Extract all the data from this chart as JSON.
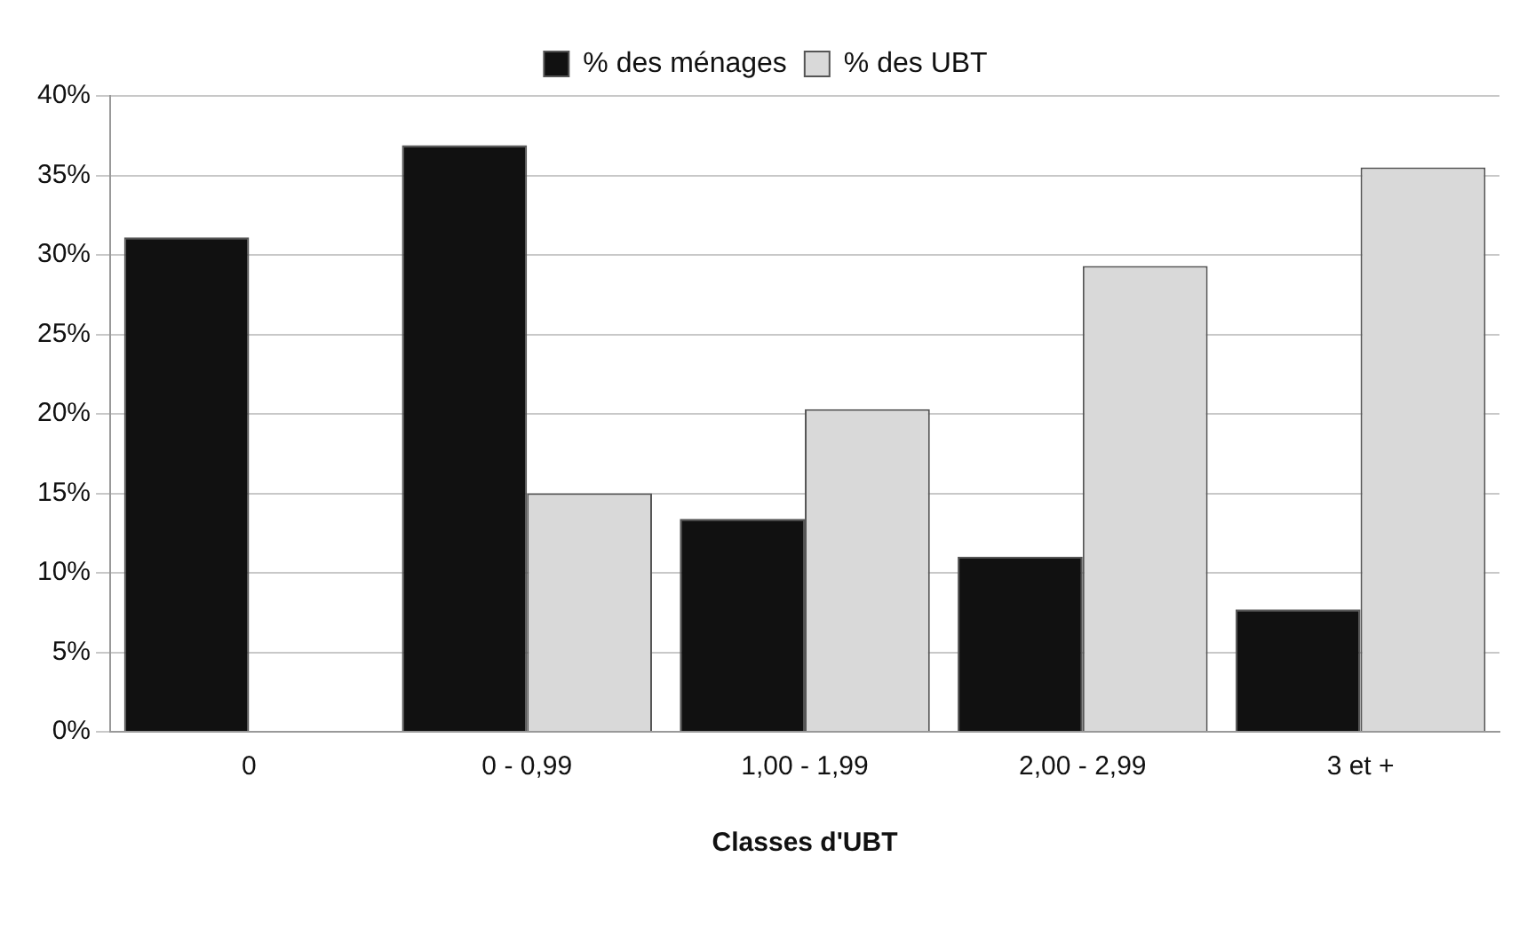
{
  "chart_data": {
    "type": "bar",
    "xlabel": "Classes d'UBT",
    "categories": [
      "0",
      "0 - 0,99",
      "1,00 - 1,99",
      "2,00 - 2,99",
      "3 et +"
    ],
    "series": [
      {
        "name": "% des ménages",
        "color": "#111111",
        "values": [
          31.1,
          36.9,
          13.4,
          11.0,
          7.7
        ]
      },
      {
        "name": "% des UBT",
        "color": "#d9d9d9",
        "values": [
          null,
          15.0,
          20.3,
          29.3,
          35.5
        ]
      }
    ],
    "ylim": [
      0,
      40
    ],
    "yticks": [
      {
        "value": 0,
        "label": "0%"
      },
      {
        "value": 5,
        "label": "5%"
      },
      {
        "value": 10,
        "label": "10%"
      },
      {
        "value": 15,
        "label": "15%"
      },
      {
        "value": 20,
        "label": "20%"
      },
      {
        "value": 25,
        "label": "25%"
      },
      {
        "value": 30,
        "label": "30%"
      },
      {
        "value": 35,
        "label": "35%"
      },
      {
        "value": 40,
        "label": "40%"
      }
    ],
    "grid": "y",
    "legend": "top"
  }
}
